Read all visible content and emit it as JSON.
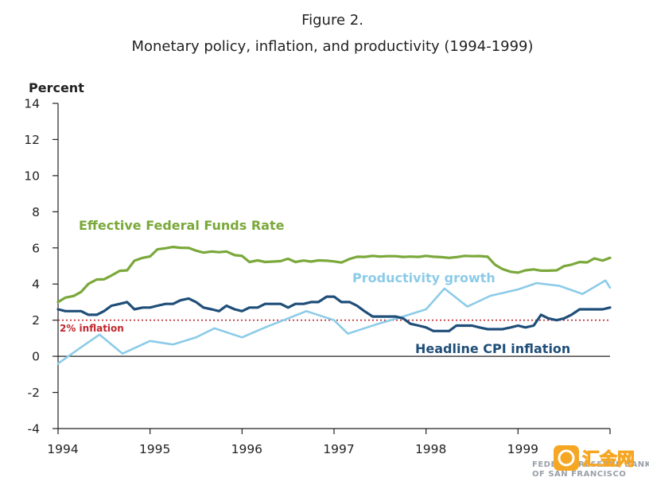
{
  "chart_data": {
    "type": "line",
    "title": "Figure 2.",
    "subtitle": "Monetary policy, inflation, and productivity (1994-1999)",
    "ylabel": "Percent",
    "xlabel": "",
    "ylim": [
      -4,
      14
    ],
    "xlim": [
      1994,
      2000
    ],
    "yticks": [
      -4,
      -2,
      0,
      2,
      4,
      6,
      8,
      10,
      12,
      14
    ],
    "xticks": [
      1994,
      1995,
      1996,
      1997,
      1998,
      1999
    ],
    "reference_line": {
      "value": 2,
      "label": "2% inflation",
      "color": "#c0272d"
    },
    "series": [
      {
        "name": "Effective Federal Funds Rate",
        "color": "#7aa83a",
        "x": [
          1994.0,
          1994.08,
          1994.17,
          1994.25,
          1994.33,
          1994.42,
          1994.5,
          1994.58,
          1994.67,
          1994.75,
          1994.83,
          1994.92,
          1995.0,
          1995.08,
          1995.17,
          1995.25,
          1995.33,
          1995.42,
          1995.5,
          1995.58,
          1995.67,
          1995.75,
          1995.83,
          1995.92,
          1996.0,
          1996.08,
          1996.17,
          1996.25,
          1996.33,
          1996.42,
          1996.5,
          1996.58,
          1996.67,
          1996.75,
          1996.83,
          1996.92,
          1997.0,
          1997.08,
          1997.17,
          1997.25,
          1997.33,
          1997.42,
          1997.5,
          1997.58,
          1997.67,
          1997.75,
          1997.83,
          1997.92,
          1998.0,
          1998.08,
          1998.17,
          1998.25,
          1998.33,
          1998.42,
          1998.5,
          1998.58,
          1998.67,
          1998.75,
          1998.83,
          1998.92,
          1999.0,
          1999.08,
          1999.17,
          1999.25,
          1999.33,
          1999.42,
          1999.5,
          1999.58,
          1999.67,
          1999.75,
          1999.83,
          1999.92,
          2000.0
        ],
        "values": [
          3.0,
          3.25,
          3.34,
          3.56,
          4.01,
          4.25,
          4.26,
          4.47,
          4.73,
          4.76,
          5.29,
          5.45,
          5.53,
          5.92,
          5.98,
          6.05,
          6.01,
          6.0,
          5.85,
          5.74,
          5.8,
          5.76,
          5.8,
          5.6,
          5.56,
          5.22,
          5.31,
          5.22,
          5.24,
          5.27,
          5.4,
          5.22,
          5.3,
          5.24,
          5.31,
          5.29,
          5.25,
          5.19,
          5.39,
          5.51,
          5.5,
          5.56,
          5.52,
          5.54,
          5.54,
          5.5,
          5.52,
          5.5,
          5.56,
          5.51,
          5.49,
          5.45,
          5.49,
          5.56,
          5.54,
          5.55,
          5.51,
          5.07,
          4.83,
          4.68,
          4.63,
          4.76,
          4.81,
          4.74,
          4.74,
          4.76,
          4.99,
          5.07,
          5.22,
          5.2,
          5.42,
          5.3,
          5.45
        ]
      },
      {
        "name": "Productivity growth",
        "color": "#8ccbe8",
        "x": [
          1994.0,
          1994.25,
          1994.45,
          1994.7,
          1995.0,
          1995.25,
          1995.5,
          1995.7,
          1996.0,
          1996.25,
          1996.5,
          1996.7,
          1997.0,
          1997.15,
          1997.45,
          1997.75,
          1998.0,
          1998.2,
          1998.45,
          1998.7,
          1999.0,
          1999.2,
          1999.45,
          1999.7,
          1999.95,
          2000.0
        ],
        "values": [
          -0.4,
          0.5,
          1.2,
          0.15,
          0.85,
          0.65,
          1.05,
          1.55,
          1.05,
          1.6,
          2.1,
          2.5,
          2.0,
          1.25,
          1.75,
          2.2,
          2.6,
          3.75,
          2.75,
          3.35,
          3.7,
          4.05,
          3.9,
          3.45,
          4.2,
          3.8
        ]
      },
      {
        "name": "Headline CPI inflation",
        "color": "#1f4e79",
        "x": [
          1994.0,
          1994.08,
          1994.17,
          1994.25,
          1994.33,
          1994.42,
          1994.5,
          1994.58,
          1994.67,
          1994.75,
          1994.83,
          1994.92,
          1995.0,
          1995.08,
          1995.17,
          1995.25,
          1995.33,
          1995.42,
          1995.5,
          1995.58,
          1995.67,
          1995.75,
          1995.83,
          1995.92,
          1996.0,
          1996.08,
          1996.17,
          1996.25,
          1996.33,
          1996.42,
          1996.5,
          1996.58,
          1996.67,
          1996.75,
          1996.83,
          1996.92,
          1997.0,
          1997.08,
          1997.17,
          1997.25,
          1997.33,
          1997.42,
          1997.5,
          1997.58,
          1997.67,
          1997.75,
          1997.83,
          1997.92,
          1998.0,
          1998.08,
          1998.17,
          1998.25,
          1998.33,
          1998.42,
          1998.5,
          1998.58,
          1998.67,
          1998.75,
          1998.83,
          1998.92,
          1999.0,
          1999.08,
          1999.17,
          1999.25,
          1999.33,
          1999.42,
          1999.5,
          1999.58,
          1999.67,
          1999.75,
          1999.83,
          1999.92,
          2000.0
        ],
        "values": [
          2.6,
          2.5,
          2.5,
          2.5,
          2.3,
          2.3,
          2.5,
          2.8,
          2.9,
          3.0,
          2.6,
          2.7,
          2.7,
          2.8,
          2.9,
          2.9,
          3.1,
          3.2,
          3.0,
          2.7,
          2.6,
          2.5,
          2.8,
          2.6,
          2.5,
          2.7,
          2.7,
          2.9,
          2.9,
          2.9,
          2.7,
          2.9,
          2.9,
          3.0,
          3.0,
          3.3,
          3.3,
          3.0,
          3.0,
          2.8,
          2.5,
          2.2,
          2.2,
          2.2,
          2.2,
          2.1,
          1.8,
          1.7,
          1.6,
          1.4,
          1.4,
          1.4,
          1.7,
          1.7,
          1.7,
          1.6,
          1.5,
          1.5,
          1.5,
          1.6,
          1.7,
          1.6,
          1.7,
          2.3,
          2.1,
          2.0,
          2.1,
          2.3,
          2.6,
          2.6,
          2.6,
          2.6,
          2.7
        ]
      }
    ],
    "annotations": [
      {
        "text": "Effective Federal Funds Rate",
        "series": "Effective Federal Funds Rate"
      },
      {
        "text": "Productivity growth",
        "series": "Productivity growth"
      },
      {
        "text": "Headline CPI inflation",
        "series": "Headline CPI inflation"
      },
      {
        "text": "2% inflation",
        "series": "reference"
      }
    ]
  },
  "source_logo": {
    "line1": "FEDERAL RESERVE BANK",
    "line2": "OF SAN FRANCISCO"
  },
  "watermark": {
    "text": "汇金网",
    "color": "#f5a623"
  }
}
